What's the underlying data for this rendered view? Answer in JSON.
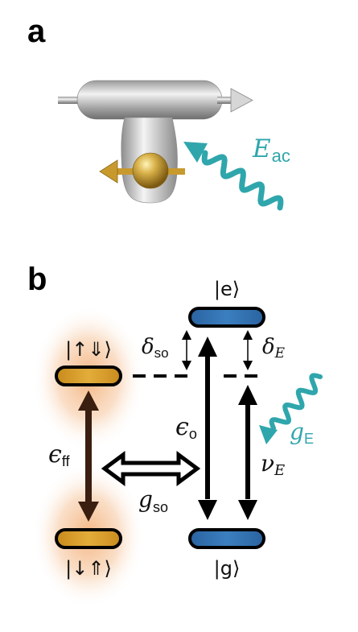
{
  "panel_a": {
    "label": "a",
    "field_symbol": "E",
    "field_subscript": "ac"
  },
  "panel_b": {
    "label": "b",
    "states": {
      "excited": "|e⟩",
      "ground": "|g⟩",
      "hole_up": "|↑⇓⟩",
      "hole_down": "|↓⇑⟩"
    },
    "symbols": {
      "delta_so_main": "δ",
      "delta_so_sub": "so",
      "delta_E_main": "δ",
      "delta_E_sub": "E",
      "eps_ff_main": "ϵ",
      "eps_ff_sub": "ff",
      "eps_o_main": "ϵ",
      "eps_o_sub": "o",
      "g_so_main": "g",
      "g_so_sub": "so",
      "g_E_main": "g",
      "g_E_sub": "E",
      "nu_E_main": "ν",
      "nu_E_sub": "E"
    }
  },
  "colors": {
    "teal": "#2fa6ac",
    "blue_level": "#2f6fae",
    "gold_level": "#d89a22",
    "glow": "#f0a060",
    "dark_arrow": "#3a1e10"
  }
}
